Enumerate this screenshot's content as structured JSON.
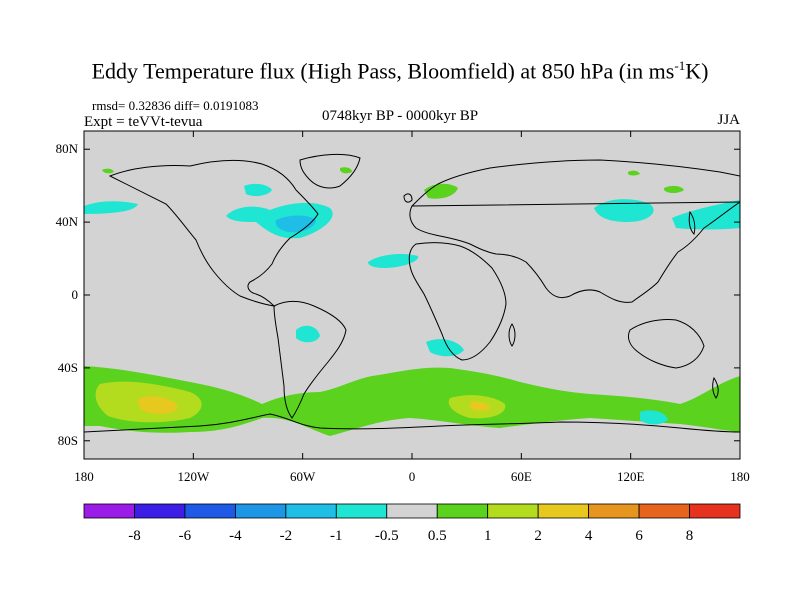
{
  "title": {
    "main": "Eddy Temperature flux (High Pass, Bloomfield) at 850 hPa (in ms",
    "sup": "-1",
    "unit": "K)"
  },
  "stats": "rmsd= 0.32836 diff= 0.0191083",
  "experiment": "Expt = teVVt-tevua",
  "period": "0748kyr BP - 0000kyr BP",
  "season": "JJA",
  "map": {
    "lon_range": [
      -180,
      180
    ],
    "lat_range": [
      -90,
      90
    ],
    "background_color": "#d3d3d3",
    "y_ticks": [
      {
        "lat": 80,
        "label": "80N"
      },
      {
        "lat": 40,
        "label": "40N"
      },
      {
        "lat": 0,
        "label": "0"
      },
      {
        "lat": -40,
        "label": "40S"
      },
      {
        "lat": -80,
        "label": "80S"
      }
    ],
    "x_ticks": [
      {
        "lon": -180,
        "label": "180"
      },
      {
        "lon": -120,
        "label": "120W"
      },
      {
        "lon": -60,
        "label": "60W"
      },
      {
        "lon": 0,
        "label": "0"
      },
      {
        "lon": 60,
        "label": "60E"
      },
      {
        "lon": 120,
        "label": "120E"
      },
      {
        "lon": 180,
        "label": "180"
      }
    ]
  },
  "colorbar": {
    "labels": [
      "-8",
      "-6",
      "-4",
      "-2",
      "-1",
      "-0.5",
      "0.5",
      "1",
      "2",
      "4",
      "6",
      "8"
    ],
    "colors": [
      "#9a1ce6",
      "#3c1ee6",
      "#1e5ae6",
      "#1e96e6",
      "#1ebee6",
      "#1ee6d2",
      "#d3d3d3",
      "#5ad21e",
      "#b4dc1e",
      "#e6c81e",
      "#e6961e",
      "#e6641e",
      "#e6321e"
    ]
  }
}
